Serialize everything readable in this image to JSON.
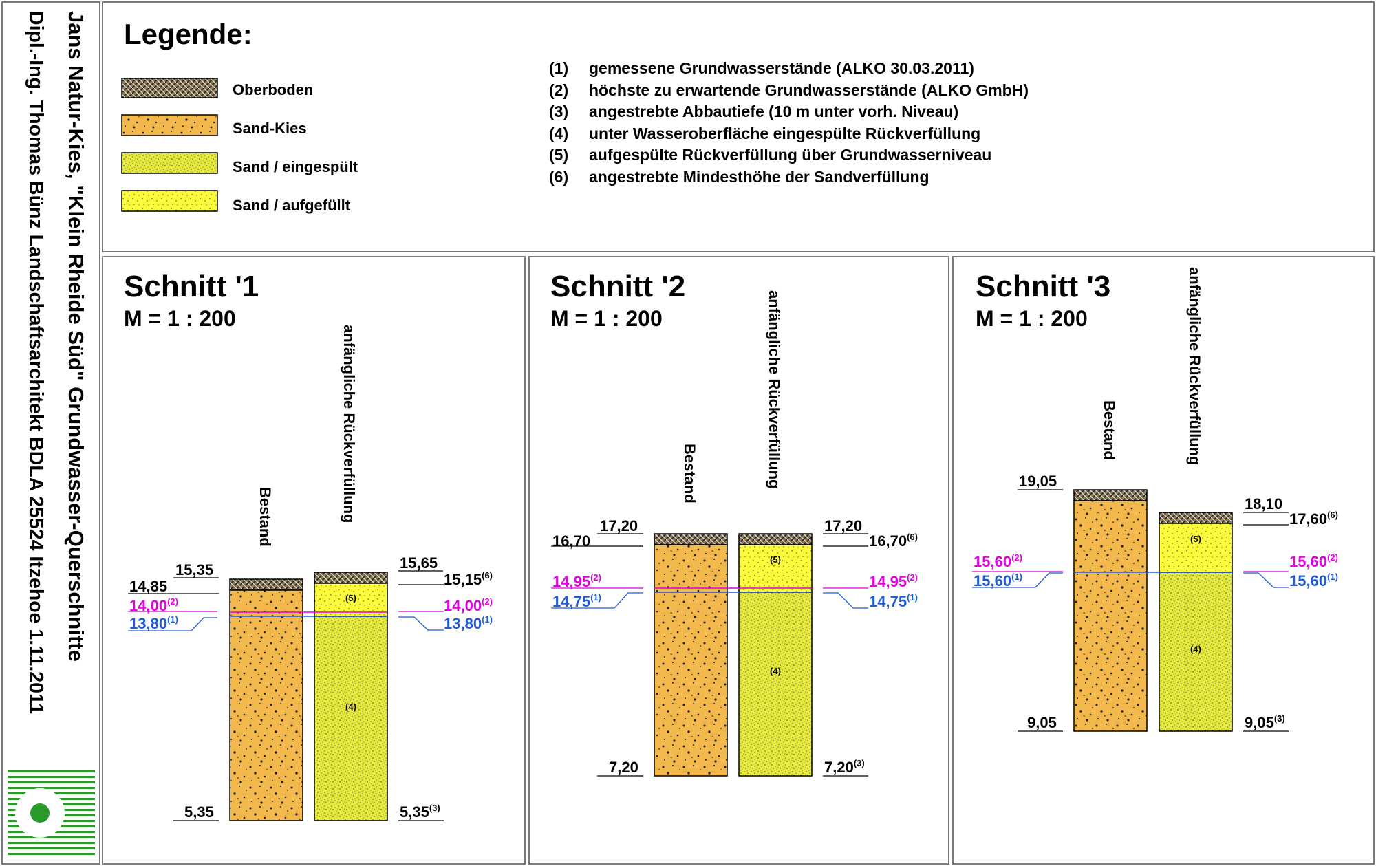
{
  "sidebar": {
    "title": "Jans Natur-Kies, \"Klein Rheide Süd\" Grundwasser-Querschnitte",
    "author": "Dipl.-Ing. Thomas Bünz Landschaftsarchitekt BDLA  25524 Itzehoe 1.11.2011"
  },
  "legend": {
    "title": "Legende:",
    "materials": [
      {
        "label": "Oberboden",
        "pattern": "oberboden"
      },
      {
        "label": "Sand-Kies",
        "pattern": "sandkies"
      },
      {
        "label": "Sand / eingespült",
        "pattern": "eingespuelt"
      },
      {
        "label": "Sand / aufgefüllt",
        "pattern": "aufgefuellt"
      }
    ],
    "notes": [
      {
        "num": "(1)",
        "text": "gemessene Grundwasserstände (ALKO 30.03.2011)"
      },
      {
        "num": "(2)",
        "text": "höchste zu erwartende Grundwasserstände (ALKO GmbH)"
      },
      {
        "num": "(3)",
        "text": "angestrebte Abbautiefe (10 m unter vorh. Niveau)"
      },
      {
        "num": "(4)",
        "text": "unter Wasseroberfläche eingespülte Rückverfüllung"
      },
      {
        "num": "(5)",
        "text": "aufgespülte Rückverfüllung über Grundwasserniveau"
      },
      {
        "num": "(6)",
        "text": "angestrebte Mindesthöhe der Sandverfüllung"
      }
    ]
  },
  "colors": {
    "sandkies": "#f2b84b",
    "eingespuelt": "#e6ea3c",
    "aufgefuellt": "#fbfb3c",
    "oberboden": "#7a6a52",
    "groundwater_measured": "#1f5bd6",
    "groundwater_max": "#e000e0",
    "frame": "#7a7a7a"
  },
  "column_labels": {
    "bestand": "Bestand",
    "rueck": "anfängliche Rückverfüllung"
  },
  "sections": [
    {
      "title": "Schnitt '1",
      "scale": "M = 1 : 200",
      "bestand": {
        "top": "15,35",
        "topsoil": "14,85",
        "bottom": "5,35"
      },
      "rueck": {
        "top": "15,65",
        "topsoil": "15,15",
        "topsoil_ref": "(6)",
        "bottom": "5,35",
        "bottom_ref": "(3)"
      },
      "gw_max": "14,00",
      "gw_max_ref": "(2)",
      "gw_meas": "13,80",
      "gw_meas_ref": "(1)",
      "label4": "(4)",
      "label5": "(5)"
    },
    {
      "title": "Schnitt '2",
      "scale": "M = 1 : 200",
      "bestand": {
        "top": "17,20",
        "topsoil": "16,70",
        "bottom": "7,20"
      },
      "rueck": {
        "top": "17,20",
        "topsoil": "16,70",
        "topsoil_ref": "(6)",
        "bottom": "7,20",
        "bottom_ref": "(3)"
      },
      "gw_max": "14,95",
      "gw_max_ref": "(2)",
      "gw_meas": "14,75",
      "gw_meas_ref": "(1)",
      "label4": "(4)",
      "label5": "(5)"
    },
    {
      "title": "Schnitt '3",
      "scale": "M = 1 : 200",
      "bestand": {
        "top": "19,05",
        "bottom": "9,05"
      },
      "rueck": {
        "top": "18,10",
        "topsoil": "17,60",
        "topsoil_ref": "(6)",
        "bottom": "9,05",
        "bottom_ref": "(3)"
      },
      "gw_max": "15,60",
      "gw_max_ref": "(2)",
      "gw_meas": "15,60",
      "gw_meas_ref": "(1)",
      "label4": "(4)",
      "label5": "(5)"
    }
  ]
}
